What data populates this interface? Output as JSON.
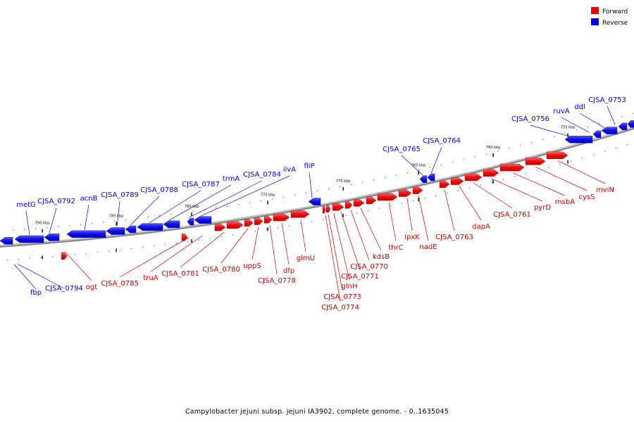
{
  "caption": "Campylobacter jejuni subsp. jejuni IA3902, complete genome. - 0..1635045",
  "legend": [
    {
      "key": "forward",
      "label": "Forward",
      "color": "#ee0000"
    },
    {
      "key": "reverse",
      "label": "Reverse",
      "color": "#0000ee"
    }
  ],
  "ticks": [
    {
      "label": "790 kbp"
    },
    {
      "label": "785 kbp"
    },
    {
      "label": "780 kbp"
    },
    {
      "label": "775 kbp"
    },
    {
      "label": "770 kbp"
    },
    {
      "label": "765 kbp"
    },
    {
      "label": "760 kbp"
    },
    {
      "label": "755 kbp"
    }
  ],
  "reverse_labels": [
    {
      "text": "metG"
    },
    {
      "text": "CJSA_0792"
    },
    {
      "text": "acnB"
    },
    {
      "text": "CJSA_0789"
    },
    {
      "text": "CJSA_0788"
    },
    {
      "text": "CJSA_0787"
    },
    {
      "text": "trmA"
    },
    {
      "text": "CJSA_0784"
    },
    {
      "text": "ilvA"
    },
    {
      "text": "fliP"
    },
    {
      "text": "CJSA_0765"
    },
    {
      "text": "CJSA_0764"
    },
    {
      "text": "CJSA_0756"
    },
    {
      "text": "ruvA"
    },
    {
      "text": "ddl"
    },
    {
      "text": "CJSA_0753"
    },
    {
      "text": "fbp"
    },
    {
      "text": "CJSA_0794"
    }
  ],
  "forward_labels": [
    {
      "text": "ogt"
    },
    {
      "text": "CJSA_0785"
    },
    {
      "text": "truA"
    },
    {
      "text": "CJSA_0781"
    },
    {
      "text": "CJSA_0780"
    },
    {
      "text": "uppS"
    },
    {
      "text": "CJSA_0778"
    },
    {
      "text": "dfp"
    },
    {
      "text": "glmU"
    },
    {
      "text": "CJSA_0774"
    },
    {
      "text": "CJSA_0773"
    },
    {
      "text": "glnH"
    },
    {
      "text": "CJSA_0771"
    },
    {
      "text": "CJSA_0770"
    },
    {
      "text": "kdsB"
    },
    {
      "text": "thrC"
    },
    {
      "text": "lpxK"
    },
    {
      "text": "nadE"
    },
    {
      "text": "CJSA_0763"
    },
    {
      "text": "dapA"
    },
    {
      "text": "CJSA_0761"
    },
    {
      "text": "pyrD"
    },
    {
      "text": "msbA"
    },
    {
      "text": "cysS"
    },
    {
      "text": "mviN"
    }
  ]
}
